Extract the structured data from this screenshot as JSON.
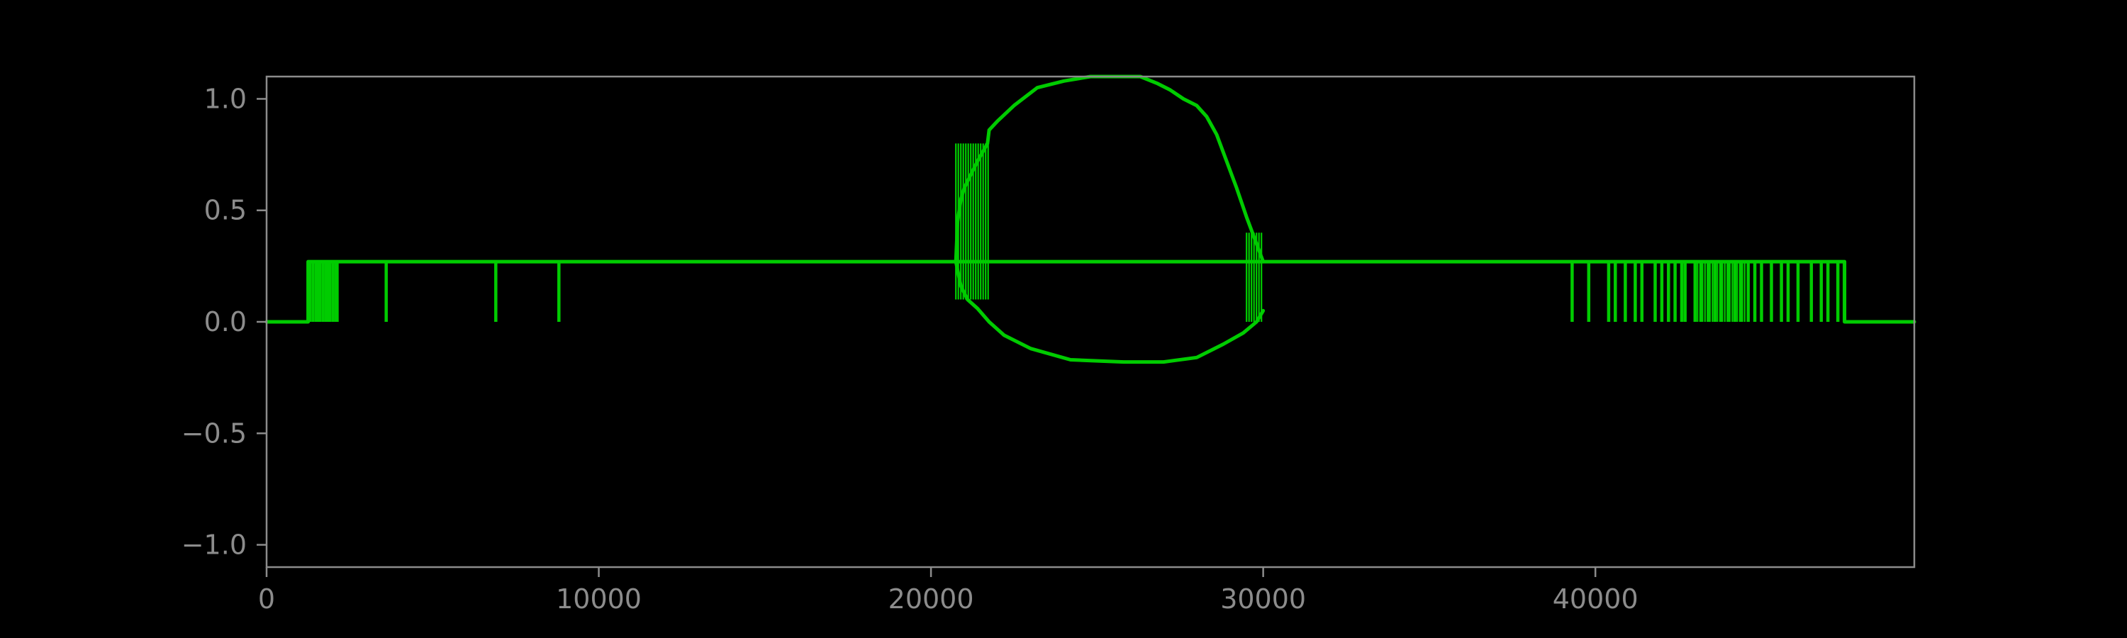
{
  "colors": {
    "background": "#000000",
    "axis": "#8c8c8c",
    "tick_text": "#8c8c8c",
    "series": "#00cc00"
  },
  "chart_data": {
    "type": "line",
    "title": "",
    "xlabel": "",
    "ylabel": "",
    "xlim": [
      0,
      49600
    ],
    "ylim": [
      -1.1,
      1.1
    ],
    "grid": false,
    "legend": "none",
    "x_ticks": [
      0,
      10000,
      20000,
      30000,
      40000
    ],
    "x_tick_labels": [
      "0",
      "10000",
      "20000",
      "30000",
      "40000"
    ],
    "y_ticks": [
      1.0,
      0.5,
      0.0,
      -0.5,
      -1.0
    ],
    "y_tick_labels": [
      "1.0",
      "0.5",
      "0.0",
      "−0.5",
      "−1.0"
    ],
    "series": [
      {
        "color": "#00cc00",
        "baseline": {
          "x": [
            0,
            1250,
            1250,
            47500,
            47500,
            49600
          ],
          "y": [
            0.0,
            0.0,
            0.27,
            0.27,
            0.0,
            0.0
          ]
        },
        "upper_envelope": {
          "x": [
            20750,
            20800,
            20900,
            21000,
            21200,
            21400,
            21700,
            21750,
            22000,
            22500,
            23200,
            24000,
            24800,
            25600,
            26300,
            26800,
            27200,
            27600,
            28000,
            28300,
            28600,
            28900,
            29200,
            29500,
            29800,
            30000
          ],
          "y": [
            0.27,
            0.45,
            0.55,
            0.6,
            0.66,
            0.72,
            0.8,
            0.86,
            0.9,
            0.97,
            1.05,
            1.08,
            1.1,
            1.1,
            1.1,
            1.07,
            1.04,
            1.0,
            0.97,
            0.92,
            0.84,
            0.72,
            0.6,
            0.47,
            0.35,
            0.27
          ]
        },
        "lower_envelope": {
          "x": [
            20750,
            20900,
            21100,
            21400,
            21750,
            22200,
            23000,
            24200,
            25800,
            27000,
            28000,
            28800,
            29400,
            29800,
            30000
          ],
          "y": [
            0.27,
            0.16,
            0.1,
            0.06,
            0.0,
            -0.06,
            -0.12,
            -0.17,
            -0.18,
            -0.18,
            -0.16,
            -0.1,
            -0.05,
            0.0,
            0.05
          ]
        },
        "dense_block_left": {
          "x": [
            20750,
            21750
          ],
          "y": [
            0.1,
            0.8
          ]
        },
        "dense_block_right": {
          "x": [
            29500,
            30000
          ],
          "y": [
            0.0,
            0.4
          ]
        },
        "dense_block_early": {
          "x": [
            1250,
            2150
          ],
          "y": [
            0.0,
            0.27
          ]
        },
        "dense_block_late": {
          "x": [
            43000,
            44500
          ],
          "y": [
            0.0,
            0.27
          ]
        },
        "spikes_x": [
          1300,
          1400,
          1500,
          1600,
          1700,
          1800,
          1900,
          2000,
          2100,
          3600,
          6900,
          8800,
          39300,
          39800,
          40400,
          40600,
          40900,
          41200,
          41400,
          41800,
          42000,
          42200,
          42400,
          42600,
          42700,
          43000,
          43200,
          43400,
          43600,
          43800,
          44000,
          44200,
          44400,
          44600,
          44800,
          45000,
          45300,
          45600,
          45800,
          46100,
          46500,
          46800,
          47000,
          47300,
          47500
        ]
      }
    ]
  }
}
